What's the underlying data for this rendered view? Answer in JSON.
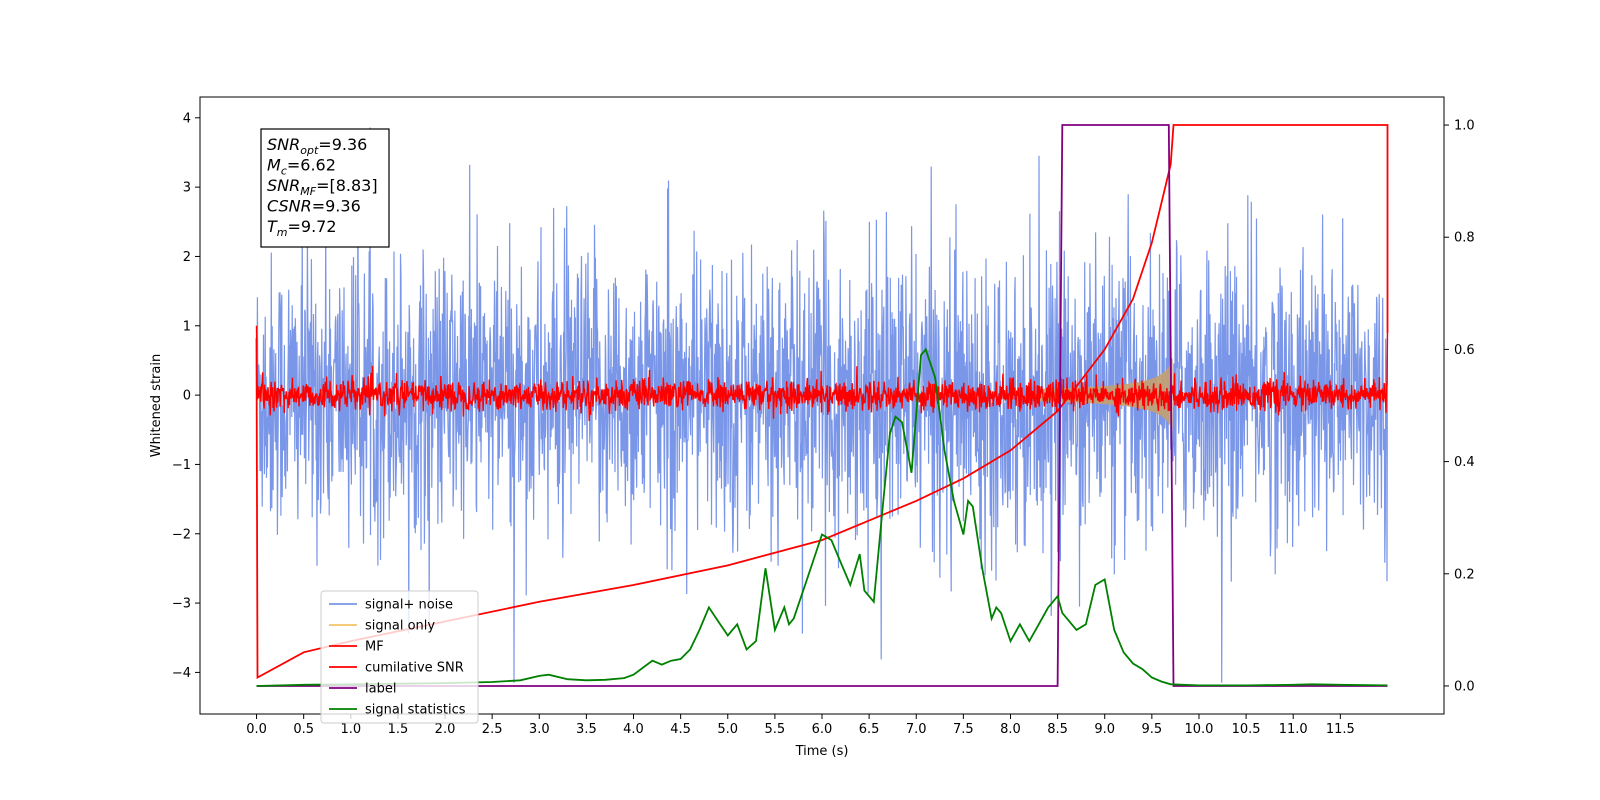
{
  "chart_data": {
    "type": "line",
    "xlabel": "Time (s)",
    "ylabel_left": "Whitened strain",
    "x_ticks": [
      0.0,
      0.5,
      1.0,
      1.5,
      2.0,
      2.5,
      3.0,
      3.5,
      4.0,
      4.5,
      5.0,
      5.5,
      6.0,
      6.5,
      7.0,
      7.5,
      8.0,
      8.5,
      9.0,
      9.5,
      10.0,
      10.5,
      11.0,
      11.5
    ],
    "x_tick_labels": [
      "0.0",
      "0.5",
      "1.0",
      "1.5",
      "2.0",
      "2.5",
      "3.0",
      "3.5",
      "4.0",
      "4.5",
      "5.0",
      "5.5",
      "6.0",
      "6.5",
      "7.0",
      "7.5",
      "8.0",
      "8.5",
      "9.0",
      "9.5",
      "10.0",
      "10.5",
      "11.0",
      "11.5"
    ],
    "xlim": [
      -0.6,
      12.6
    ],
    "ylim_left": [
      -4.6,
      4.3
    ],
    "y_ticks_left": [
      -4,
      -3,
      -2,
      -1,
      0,
      1,
      2,
      3,
      4
    ],
    "y_tick_labels_left": [
      "−4",
      "−3",
      "−2",
      "−1",
      "0",
      "1",
      "2",
      "3",
      "4"
    ],
    "ylim_right": [
      -0.05,
      1.05
    ],
    "y_ticks_right": [
      0.0,
      0.2,
      0.4,
      0.6,
      0.8,
      1.0
    ],
    "y_tick_labels_right": [
      "0.0",
      "0.2",
      "0.4",
      "0.6",
      "0.8",
      "1.0"
    ],
    "legend_placement": "lower-left",
    "info_box": [
      {
        "base": "SNR",
        "sub": "opt",
        "rest": "=9.36"
      },
      {
        "base": "M",
        "sub": "c",
        "rest": "=6.62"
      },
      {
        "base": "SNR",
        "sub": "MF",
        "rest": "=[8.83]"
      },
      {
        "base": "CSNR",
        "sub": "",
        "rest": "=9.36"
      },
      {
        "base": "T",
        "sub": "m",
        "rest": "=9.72"
      }
    ],
    "series": [
      {
        "name": "signal+ noise",
        "color": "#7a96e8",
        "axis": "left",
        "kind": "noise",
        "amplitude": 1.3,
        "x_range": [
          0.0,
          12.0
        ]
      },
      {
        "name": "signal only",
        "color": "#f5c36a",
        "axis": "left",
        "kind": "chirp",
        "x_range": [
          8.3,
          9.72
        ],
        "peak_amplitude": 0.7
      },
      {
        "name": "MF",
        "color": "#ff0000",
        "axis": "left",
        "kind": "noise",
        "amplitude": 0.2,
        "x_range": [
          0.0,
          12.0
        ]
      },
      {
        "name": "cumilative SNR",
        "color": "#ff0000",
        "axis": "right",
        "x": [
          0.0,
          0.01,
          0.5,
          1.0,
          2.0,
          3.0,
          4.0,
          5.0,
          6.0,
          7.0,
          7.5,
          8.0,
          8.5,
          9.0,
          9.3,
          9.5,
          9.6,
          9.7,
          9.73,
          10.5,
          12.0,
          12.0
        ],
        "y": [
          0.62,
          0.015,
          0.06,
          0.08,
          0.115,
          0.15,
          0.18,
          0.215,
          0.26,
          0.33,
          0.37,
          0.42,
          0.49,
          0.6,
          0.69,
          0.79,
          0.86,
          0.93,
          1.0,
          1.0,
          1.0,
          0.63
        ]
      },
      {
        "name": "label",
        "color": "#800080",
        "axis": "right",
        "x": [
          0.0,
          8.5,
          8.55,
          9.68,
          9.73,
          12.0
        ],
        "y": [
          0.0,
          0.0,
          1.0,
          1.0,
          0.0,
          0.0
        ]
      },
      {
        "name": "signal statistics",
        "color": "#008000",
        "axis": "right",
        "x": [
          0.0,
          0.5,
          1.0,
          1.5,
          2.0,
          2.5,
          2.8,
          3.0,
          3.1,
          3.3,
          3.5,
          3.7,
          3.9,
          4.0,
          4.2,
          4.3,
          4.4,
          4.5,
          4.6,
          4.7,
          4.8,
          4.9,
          5.0,
          5.1,
          5.2,
          5.3,
          5.4,
          5.5,
          5.6,
          5.65,
          5.7,
          5.8,
          5.9,
          6.0,
          6.1,
          6.2,
          6.3,
          6.4,
          6.45,
          6.55,
          6.65,
          6.72,
          6.78,
          6.85,
          6.95,
          7.05,
          7.1,
          7.2,
          7.3,
          7.4,
          7.5,
          7.55,
          7.6,
          7.7,
          7.8,
          7.85,
          7.9,
          8.0,
          8.1,
          8.2,
          8.3,
          8.4,
          8.5,
          8.55,
          8.6,
          8.7,
          8.8,
          8.9,
          9.0,
          9.1,
          9.2,
          9.3,
          9.4,
          9.5,
          9.6,
          9.7,
          10.0,
          10.5,
          11.0,
          11.2,
          11.5,
          12.0
        ],
        "y": [
          0.0,
          0.002,
          0.003,
          0.004,
          0.005,
          0.007,
          0.01,
          0.018,
          0.02,
          0.012,
          0.01,
          0.011,
          0.014,
          0.02,
          0.045,
          0.038,
          0.045,
          0.048,
          0.065,
          0.1,
          0.14,
          0.115,
          0.09,
          0.11,
          0.065,
          0.08,
          0.21,
          0.1,
          0.14,
          0.11,
          0.12,
          0.17,
          0.22,
          0.27,
          0.26,
          0.22,
          0.18,
          0.235,
          0.17,
          0.15,
          0.33,
          0.45,
          0.48,
          0.47,
          0.38,
          0.59,
          0.6,
          0.55,
          0.42,
          0.33,
          0.27,
          0.33,
          0.32,
          0.21,
          0.12,
          0.14,
          0.13,
          0.08,
          0.11,
          0.08,
          0.11,
          0.14,
          0.16,
          0.13,
          0.12,
          0.1,
          0.11,
          0.18,
          0.19,
          0.1,
          0.06,
          0.04,
          0.03,
          0.015,
          0.008,
          0.003,
          0.001,
          0.001,
          0.002,
          0.003,
          0.002,
          0.001
        ]
      }
    ]
  }
}
